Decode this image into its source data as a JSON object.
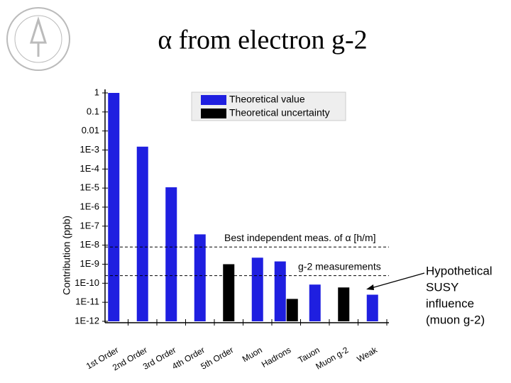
{
  "chart_data": {
    "type": "bar",
    "title": "α from electron g-2",
    "y_label": "Contribution (ppb)",
    "categories": [
      "1st Order",
      "2nd Order",
      "3rd Order",
      "4th Order",
      "5th Order",
      "Muon",
      "Hadrons",
      "Tauon",
      "Muon g-2",
      "Weak"
    ],
    "series": [
      {
        "name": "Theoretical value",
        "color": "#1f1fe0",
        "values": [
          1,
          0.0015,
          1.1e-05,
          3.7e-08,
          null,
          2.2e-09,
          1.4e-09,
          8.5e-11,
          null,
          2.5e-11
        ]
      },
      {
        "name": "Theoretical uncertainty",
        "color": "#000000",
        "values": [
          null,
          null,
          null,
          null,
          1e-09,
          null,
          1.5e-11,
          null,
          6e-11,
          null
        ]
      }
    ],
    "log_scale": true,
    "ylim": [
      1e-12,
      1
    ],
    "yticks": [
      1,
      0.1,
      0.01,
      {
        "value": 0.001,
        "label": "1E-3"
      },
      {
        "value": 0.0001,
        "label": "1E-4"
      },
      {
        "value": 1e-05,
        "label": "1E-5"
      },
      {
        "value": 1e-06,
        "label": "1E-6"
      },
      {
        "value": 1e-07,
        "label": "1E-7"
      },
      {
        "value": 1e-08,
        "label": "1E-8"
      },
      {
        "value": 1e-09,
        "label": "1E-9"
      },
      {
        "value": 1e-10,
        "label": "1E-10"
      },
      {
        "value": 1e-11,
        "label": "1E-11"
      },
      {
        "value": 1e-12,
        "label": "1E-12"
      }
    ],
    "reference_lines": [
      {
        "label": "Best independent meas. of α [h/m]",
        "value": 8e-09
      },
      {
        "label": "g-2 measurements",
        "value": 2.5e-10
      }
    ],
    "annotation": {
      "lines": [
        "Hypothetical",
        "SUSY",
        "influence",
        "(muon g-2)"
      ]
    },
    "legend": "upper right"
  }
}
